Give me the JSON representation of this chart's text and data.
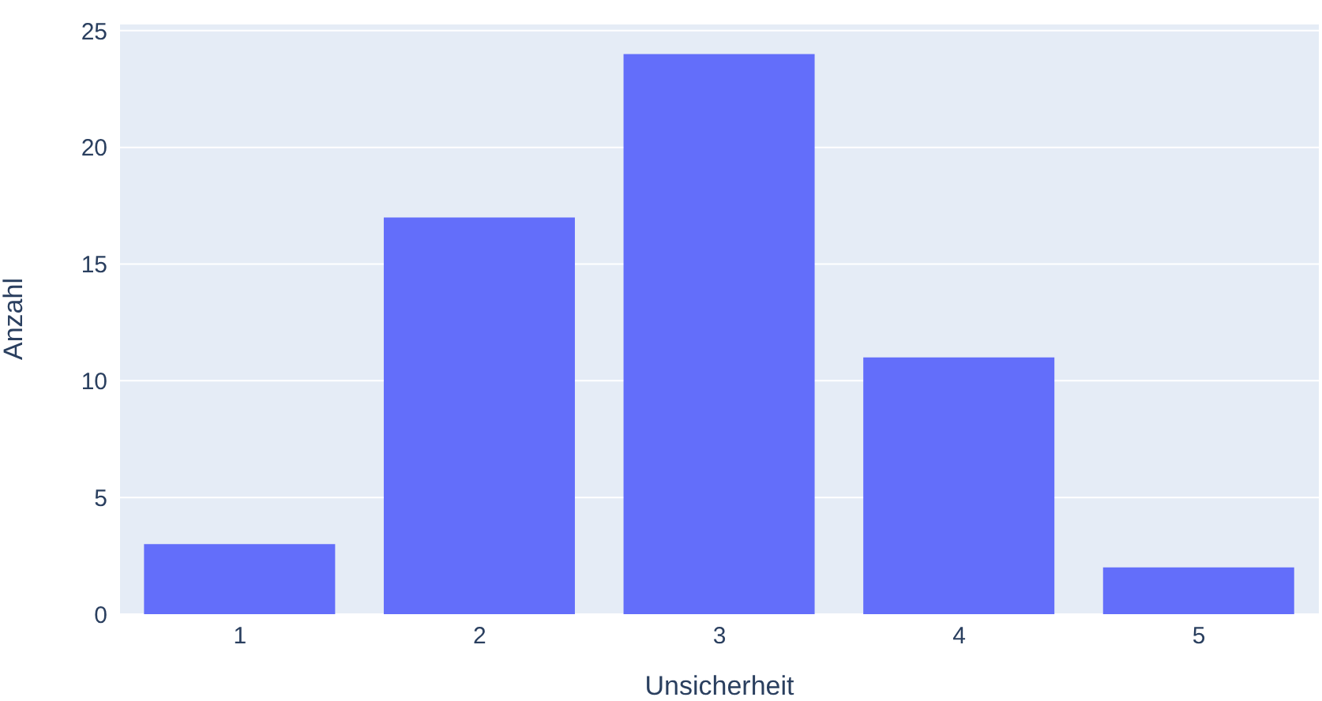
{
  "chart_data": {
    "type": "bar",
    "xlabel": "Unsicherheit",
    "ylabel": "Anzahl",
    "categories": [
      "1",
      "2",
      "3",
      "4",
      "5"
    ],
    "values": [
      3,
      17,
      24,
      11,
      2
    ],
    "color": "#636efa",
    "ylim": [
      0,
      25.3
    ],
    "yticks": [
      0,
      5,
      10,
      15,
      20,
      25
    ],
    "grid": "y"
  }
}
